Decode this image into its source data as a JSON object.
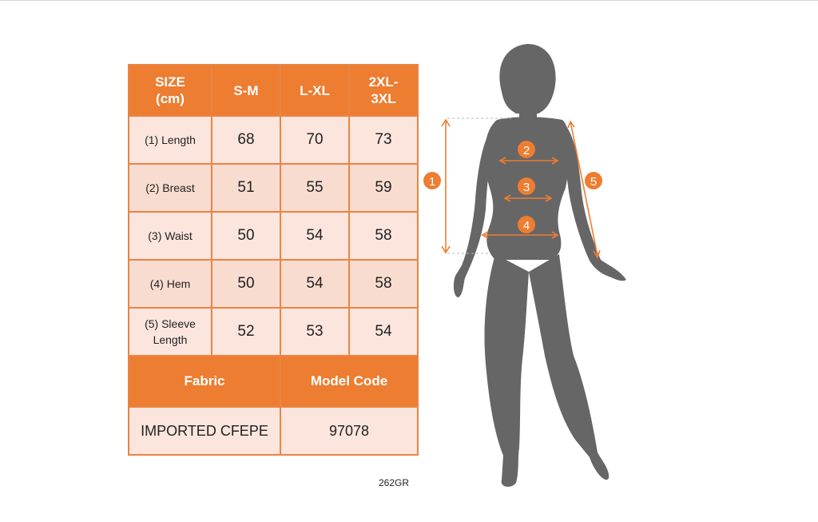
{
  "table": {
    "header": [
      "SIZE\n(cm)",
      "S-M",
      "L-XL",
      "2XL-\n3XL"
    ],
    "rows": [
      {
        "label": "(1) Length",
        "values": [
          "68",
          "70",
          "73"
        ]
      },
      {
        "label": "(2) Breast",
        "values": [
          "51",
          "55",
          "59"
        ]
      },
      {
        "label": "(3) Waist",
        "values": [
          "50",
          "54",
          "58"
        ]
      },
      {
        "label": "(4) Hem",
        "values": [
          "50",
          "54",
          "58"
        ]
      },
      {
        "label": "(5) Sleeve\nLength",
        "values": [
          "52",
          "53",
          "54"
        ]
      }
    ],
    "footer_header": [
      "Fabric",
      "Model Code"
    ],
    "footer_values": [
      "IMPORTED CFEPE",
      "97078"
    ]
  },
  "product_code": "262GR",
  "figure": {
    "markers": [
      "1",
      "2",
      "3",
      "4",
      "5"
    ],
    "accent_color": "#ed7d31",
    "silhouette_color": "#666666"
  }
}
